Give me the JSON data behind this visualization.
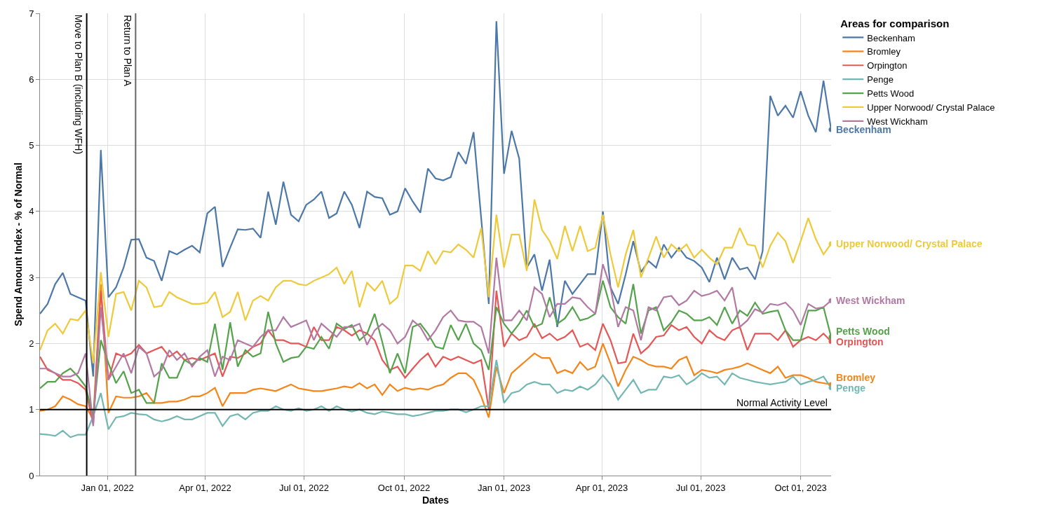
{
  "chart_data": {
    "type": "line",
    "xlabel": "Dates",
    "ylabel": "Spend Amount Index - % of Normal",
    "legend_title": "Areas for comparison",
    "x": [
      "2021-10-31",
      "2021-11-07",
      "2021-11-14",
      "2021-11-21",
      "2021-11-28",
      "2021-12-05",
      "2021-12-12",
      "2021-12-19",
      "2021-12-26",
      "2022-01-02",
      "2022-01-09",
      "2022-01-16",
      "2022-01-23",
      "2022-01-30",
      "2022-02-06",
      "2022-02-13",
      "2022-02-20",
      "2022-02-27",
      "2022-03-06",
      "2022-03-13",
      "2022-03-20",
      "2022-03-27",
      "2022-04-03",
      "2022-04-10",
      "2022-04-17",
      "2022-04-24",
      "2022-05-01",
      "2022-05-08",
      "2022-05-15",
      "2022-05-22",
      "2022-05-29",
      "2022-06-05",
      "2022-06-12",
      "2022-06-19",
      "2022-06-26",
      "2022-07-03",
      "2022-07-10",
      "2022-07-17",
      "2022-07-24",
      "2022-07-31",
      "2022-08-07",
      "2022-08-14",
      "2022-08-21",
      "2022-08-28",
      "2022-09-04",
      "2022-09-11",
      "2022-09-18",
      "2022-09-25",
      "2022-10-02",
      "2022-10-09",
      "2022-10-16",
      "2022-10-23",
      "2022-10-30",
      "2022-11-06",
      "2022-11-13",
      "2022-11-20",
      "2022-11-27",
      "2022-12-04",
      "2022-12-11",
      "2022-12-18",
      "2022-12-25",
      "2023-01-01",
      "2023-01-08",
      "2023-01-15",
      "2023-01-22",
      "2023-01-29",
      "2023-02-05",
      "2023-02-12",
      "2023-02-19",
      "2023-02-26",
      "2023-03-05",
      "2023-03-12",
      "2023-03-19",
      "2023-03-26",
      "2023-04-02",
      "2023-04-09",
      "2023-04-16",
      "2023-04-23",
      "2023-04-30",
      "2023-05-07",
      "2023-05-14",
      "2023-05-21",
      "2023-05-28",
      "2023-06-04",
      "2023-06-11",
      "2023-06-18",
      "2023-06-25",
      "2023-07-02",
      "2023-07-09",
      "2023-07-16",
      "2023-07-23",
      "2023-07-30",
      "2023-08-06",
      "2023-08-13",
      "2023-08-20",
      "2023-08-27",
      "2023-09-03",
      "2023-09-10",
      "2023-09-17",
      "2023-09-24",
      "2023-10-01",
      "2023-10-08",
      "2023-10-15",
      "2023-10-22",
      "2023-10-29"
    ],
    "series": [
      {
        "name": "Beckenham",
        "color": "#4c78a8",
        "values": [
          2.45,
          2.6,
          2.9,
          3.07,
          2.75,
          2.7,
          2.65,
          1.5,
          4.93,
          2.7,
          2.85,
          3.15,
          3.57,
          3.58,
          3.3,
          3.25,
          2.95,
          3.4,
          3.35,
          3.42,
          3.48,
          3.38,
          3.97,
          4.07,
          3.16,
          3.45,
          3.73,
          3.72,
          3.74,
          3.6,
          4.3,
          3.8,
          4.45,
          3.95,
          3.85,
          4.1,
          4.18,
          4.3,
          3.9,
          3.97,
          4.3,
          4.1,
          3.75,
          4.3,
          4.22,
          4.2,
          3.95,
          4.0,
          4.35,
          4.15,
          3.98,
          4.65,
          4.5,
          4.47,
          4.52,
          4.9,
          4.72,
          5.2,
          3.9,
          2.6,
          6.88,
          4.57,
          5.22,
          4.8,
          3.15,
          3.35,
          2.8,
          3.27,
          2.25,
          2.95,
          2.75,
          2.9,
          3.05,
          3.05,
          4.0,
          2.85,
          2.6,
          3.05,
          3.55,
          3.08,
          3.25,
          3.15,
          3.5,
          3.3,
          3.45,
          3.3,
          3.25,
          3.15,
          2.93,
          3.3,
          2.97,
          3.3,
          3.12,
          3.15,
          2.97,
          3.4,
          5.75,
          5.45,
          5.6,
          5.42,
          5.82,
          5.45,
          5.2,
          5.98,
          5.24
        ]
      },
      {
        "name": "Bromley",
        "color": "#f58518",
        "values": [
          0.98,
          1.0,
          1.05,
          1.2,
          1.15,
          1.08,
          1.05,
          0.85,
          2.9,
          0.95,
          1.2,
          1.18,
          1.18,
          1.2,
          1.25,
          1.1,
          1.1,
          1.12,
          1.12,
          1.15,
          1.2,
          1.2,
          1.25,
          1.33,
          1.05,
          1.25,
          1.25,
          1.25,
          1.3,
          1.32,
          1.3,
          1.28,
          1.33,
          1.38,
          1.32,
          1.3,
          1.28,
          1.28,
          1.3,
          1.32,
          1.35,
          1.33,
          1.4,
          1.32,
          1.38,
          1.22,
          1.38,
          1.28,
          1.33,
          1.3,
          1.32,
          1.3,
          1.35,
          1.38,
          1.48,
          1.55,
          1.55,
          1.45,
          1.2,
          0.88,
          1.65,
          1.25,
          1.55,
          1.65,
          1.75,
          1.85,
          1.78,
          1.78,
          1.55,
          1.6,
          1.55,
          1.72,
          1.6,
          1.65,
          2.0,
          1.7,
          1.35,
          1.6,
          1.8,
          1.75,
          1.68,
          1.65,
          1.65,
          1.62,
          1.75,
          1.8,
          1.52,
          1.6,
          1.58,
          1.55,
          1.6,
          1.62,
          1.65,
          1.7,
          1.65,
          1.6,
          1.55,
          1.65,
          1.48,
          1.52,
          1.52,
          1.48,
          1.42,
          1.4,
          1.38
        ]
      },
      {
        "name": "Orpington",
        "color": "#e45756",
        "values": [
          1.8,
          1.6,
          1.55,
          1.45,
          1.45,
          1.4,
          1.3,
          0.78,
          2.8,
          1.45,
          1.85,
          1.8,
          1.85,
          1.98,
          1.85,
          1.9,
          1.95,
          1.8,
          1.88,
          1.75,
          1.78,
          1.75,
          1.8,
          1.85,
          1.5,
          1.8,
          1.78,
          1.85,
          1.95,
          2.0,
          2.2,
          2.05,
          2.05,
          2.0,
          2.0,
          1.95,
          2.25,
          2.05,
          2.05,
          2.25,
          2.2,
          2.12,
          2.2,
          2.15,
          2.05,
          1.75,
          1.6,
          1.65,
          1.48,
          1.62,
          1.75,
          1.85,
          1.65,
          1.8,
          1.75,
          1.8,
          1.75,
          1.7,
          1.75,
          1.0,
          2.8,
          1.95,
          2.15,
          2.05,
          2.1,
          2.3,
          2.08,
          2.15,
          2.05,
          2.1,
          2.2,
          1.95,
          2.0,
          1.9,
          2.3,
          2.05,
          1.7,
          1.72,
          2.15,
          1.85,
          1.95,
          2.1,
          2.12,
          2.28,
          2.2,
          2.25,
          2.1,
          2.0,
          2.2,
          2.1,
          2.05,
          2.2,
          2.25,
          1.9,
          2.15,
          2.15,
          2.15,
          2.05,
          2.2,
          1.95,
          2.05,
          2.1,
          2.05,
          2.15,
          2.03
        ]
      },
      {
        "name": "Penge",
        "color": "#72b7b2",
        "values": [
          0.63,
          0.62,
          0.6,
          0.68,
          0.58,
          0.62,
          0.62,
          0.9,
          1.25,
          0.7,
          0.88,
          0.9,
          0.95,
          0.93,
          0.92,
          0.85,
          0.82,
          0.85,
          0.9,
          0.85,
          0.85,
          0.9,
          0.95,
          0.95,
          0.75,
          0.9,
          0.93,
          0.85,
          0.95,
          0.98,
          0.98,
          1.05,
          1.0,
          0.98,
          1.02,
          0.98,
          1.0,
          1.05,
          0.98,
          1.05,
          1.0,
          0.97,
          1.0,
          0.95,
          0.93,
          0.97,
          0.95,
          0.93,
          0.93,
          0.9,
          0.92,
          0.95,
          0.98,
          0.98,
          1.0,
          1.0,
          0.96,
          1.0,
          1.05,
          1.05,
          1.75,
          1.1,
          1.25,
          1.28,
          1.38,
          1.42,
          1.38,
          1.38,
          1.25,
          1.3,
          1.28,
          1.35,
          1.3,
          1.38,
          1.52,
          1.38,
          1.15,
          1.3,
          1.45,
          1.25,
          1.3,
          1.3,
          1.5,
          1.48,
          1.52,
          1.38,
          1.45,
          1.55,
          1.48,
          1.5,
          1.38,
          1.55,
          1.48,
          1.45,
          1.42,
          1.4,
          1.38,
          1.4,
          1.42,
          1.5,
          1.38,
          1.42,
          1.45,
          1.5,
          1.33
        ]
      },
      {
        "name": "Petts Wood",
        "color": "#54a24b",
        "values": [
          1.32,
          1.42,
          1.42,
          1.55,
          1.62,
          1.5,
          1.35,
          0.9,
          2.05,
          1.7,
          1.4,
          1.58,
          1.25,
          1.3,
          1.1,
          1.1,
          1.7,
          1.48,
          1.48,
          1.75,
          1.68,
          1.78,
          1.72,
          2.3,
          1.6,
          2.32,
          1.65,
          1.9,
          1.8,
          1.85,
          2.48,
          2.0,
          1.72,
          1.78,
          1.8,
          1.95,
          1.92,
          2.1,
          1.92,
          2.3,
          2.22,
          2.28,
          2.05,
          2.15,
          2.45,
          2.02,
          1.55,
          1.85,
          1.55,
          2.25,
          2.3,
          2.15,
          1.95,
          1.92,
          2.28,
          2.05,
          2.3,
          2.0,
          1.9,
          1.6,
          2.55,
          2.3,
          2.15,
          2.3,
          2.5,
          2.25,
          2.3,
          2.7,
          2.3,
          2.38,
          2.55,
          2.35,
          2.38,
          2.45,
          2.95,
          2.55,
          2.4,
          2.3,
          2.9,
          2.15,
          2.5,
          2.55,
          2.2,
          2.32,
          2.5,
          2.45,
          2.35,
          2.35,
          2.4,
          2.28,
          2.55,
          2.3,
          2.5,
          2.42,
          2.62,
          2.45,
          2.48,
          2.5,
          2.2,
          2.05,
          2.05,
          2.5,
          2.5,
          2.55,
          2.1
        ]
      },
      {
        "name": "Upper Norwood/ Crystal Palace",
        "color": "#eeca3b",
        "values": [
          1.9,
          2.2,
          2.3,
          2.15,
          2.37,
          2.35,
          2.5,
          1.7,
          3.08,
          2.1,
          2.75,
          2.78,
          2.5,
          2.95,
          2.85,
          2.55,
          2.57,
          2.78,
          2.7,
          2.65,
          2.6,
          2.6,
          2.62,
          2.78,
          2.4,
          2.48,
          2.78,
          2.35,
          2.65,
          2.72,
          2.65,
          2.85,
          2.95,
          2.95,
          2.9,
          2.88,
          2.95,
          3.0,
          3.05,
          3.15,
          2.9,
          3.1,
          2.55,
          2.92,
          2.8,
          2.95,
          2.6,
          2.7,
          3.18,
          3.18,
          3.1,
          3.4,
          3.2,
          3.4,
          3.38,
          3.5,
          3.42,
          3.3,
          3.75,
          2.7,
          3.95,
          3.15,
          3.65,
          3.65,
          3.1,
          4.18,
          3.72,
          3.55,
          3.28,
          3.78,
          3.4,
          3.78,
          3.4,
          3.45,
          3.95,
          3.35,
          2.85,
          3.35,
          3.72,
          3.0,
          3.3,
          3.62,
          3.3,
          3.5,
          3.4,
          3.5,
          3.3,
          3.42,
          3.3,
          3.2,
          3.45,
          3.45,
          3.75,
          3.5,
          3.48,
          3.15,
          3.48,
          3.68,
          3.55,
          3.22,
          3.55,
          3.9,
          3.58,
          3.35,
          3.51
        ]
      },
      {
        "name": "West Wickham",
        "color": "#b279a2",
        "values": [
          1.62,
          1.62,
          1.55,
          1.5,
          1.5,
          1.55,
          1.85,
          0.75,
          2.55,
          1.45,
          1.65,
          1.85,
          1.55,
          1.95,
          1.85,
          1.5,
          1.6,
          1.9,
          1.75,
          1.85,
          1.65,
          1.8,
          1.9,
          1.5,
          1.8,
          1.75,
          2.05,
          2.0,
          1.95,
          2.1,
          2.2,
          2.2,
          2.4,
          2.25,
          2.3,
          2.35,
          2.05,
          2.3,
          2.2,
          2.1,
          2.25,
          2.25,
          2.3,
          1.98,
          2.2,
          2.3,
          2.2,
          2.0,
          2.1,
          2.35,
          2.25,
          2.05,
          2.2,
          2.4,
          2.5,
          2.35,
          2.33,
          2.33,
          2.25,
          1.85,
          3.3,
          2.35,
          2.35,
          2.5,
          2.35,
          2.85,
          2.75,
          2.4,
          2.6,
          2.6,
          2.7,
          2.68,
          2.55,
          2.45,
          3.2,
          2.85,
          2.25,
          2.55,
          2.5,
          2.05,
          2.55,
          2.5,
          2.7,
          2.72,
          2.58,
          2.65,
          2.8,
          2.72,
          2.75,
          2.8,
          2.65,
          2.85,
          2.25,
          2.35,
          2.52,
          2.47,
          2.6,
          2.58,
          2.62,
          2.5,
          2.28,
          2.6,
          2.53,
          2.55,
          2.65
        ]
      }
    ],
    "xlim": [
      "2021-10-31",
      "2023-10-29"
    ],
    "xticks": [
      {
        "value": "2022-01-01",
        "label": "Jan 01, 2022"
      },
      {
        "value": "2022-04-01",
        "label": "Apr 01, 2022"
      },
      {
        "value": "2022-07-01",
        "label": "Jul 01, 2022"
      },
      {
        "value": "2022-10-01",
        "label": "Oct 01, 2022"
      },
      {
        "value": "2023-01-01",
        "label": "Jan 01, 2023"
      },
      {
        "value": "2023-04-01",
        "label": "Apr 01, 2023"
      },
      {
        "value": "2023-07-01",
        "label": "Jul 01, 2023"
      },
      {
        "value": "2023-10-01",
        "label": "Oct 01, 2023"
      }
    ],
    "ylim": [
      0,
      7
    ],
    "yticks": [
      0,
      1,
      2,
      3,
      4,
      5,
      6,
      7
    ],
    "ref_lines": [
      {
        "axis": "x",
        "value": "2021-12-13",
        "label": "Move to Plan B (including WFH)",
        "color": "#000000"
      },
      {
        "axis": "x",
        "value": "2022-01-27",
        "label": "Return to Plan A",
        "color": "#666666"
      },
      {
        "axis": "y",
        "value": 1,
        "label": "Normal Activity Level",
        "color": "#000000"
      }
    ],
    "grid": true,
    "legend": "top right",
    "line_style": "solid"
  }
}
